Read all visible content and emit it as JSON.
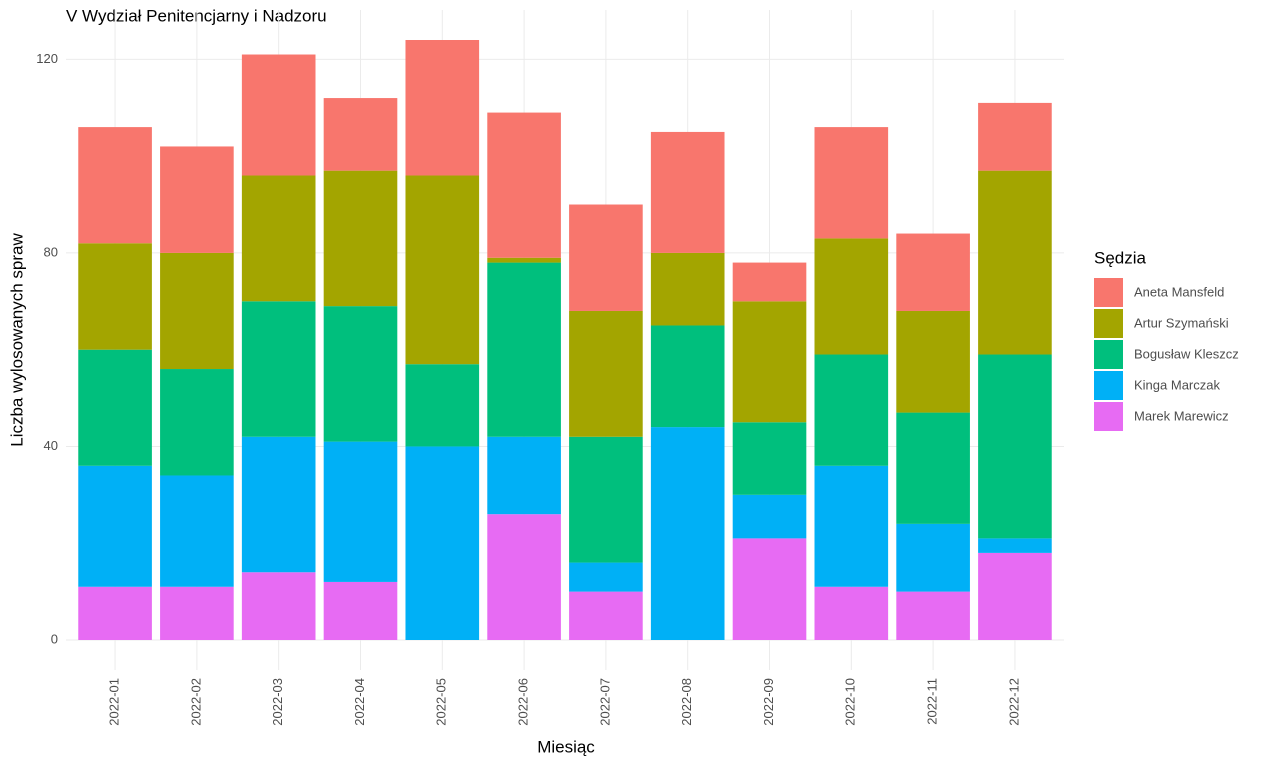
{
  "chart_data": {
    "type": "stacked_bar",
    "title": "V Wydział Penitencjarny i Nadzoru",
    "x_label": "Miesiąc",
    "y_label": "Liczba wylosowanych spraw",
    "legend_title": "Sędzia",
    "categories": [
      "2022-01",
      "2022-02",
      "2022-03",
      "2022-04",
      "2022-05",
      "2022-06",
      "2022-07",
      "2022-08",
      "2022-09",
      "2022-10",
      "2022-11",
      "2022-12"
    ],
    "series": [
      {
        "name": "Aneta Mansfeld",
        "color": "#F8766D",
        "values": [
          24,
          22,
          25,
          15,
          28,
          30,
          22,
          25,
          8,
          23,
          16,
          14
        ]
      },
      {
        "name": "Artur Szymański",
        "color": "#A3A500",
        "values": [
          22,
          24,
          26,
          28,
          39,
          1,
          26,
          15,
          25,
          24,
          21,
          38
        ]
      },
      {
        "name": "Bogusław Kleszcz",
        "color": "#00BF7D",
        "values": [
          24,
          22,
          28,
          28,
          17,
          36,
          26,
          21,
          15,
          23,
          23,
          38
        ]
      },
      {
        "name": "Kinga Marczak",
        "color": "#00B0F6",
        "values": [
          25,
          23,
          28,
          29,
          40,
          16,
          6,
          44,
          9,
          25,
          14,
          3
        ]
      },
      {
        "name": "Marek Marewicz",
        "color": "#E76BF3",
        "values": [
          11,
          11,
          14,
          12,
          0,
          26,
          10,
          0,
          21,
          11,
          10,
          18
        ]
      }
    ],
    "ylim": [
      -6.2,
      130.2
    ],
    "yticks": [
      0,
      40,
      80,
      120
    ],
    "grid": true,
    "legend": "right"
  }
}
